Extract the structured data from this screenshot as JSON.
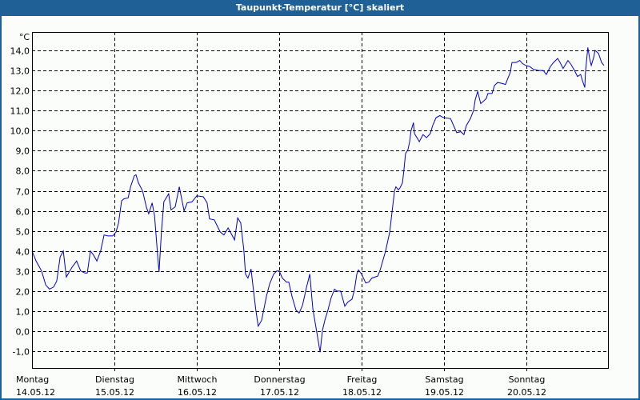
{
  "window": {
    "title": "Taupunkt-Temperatur [°C] skaliert"
  },
  "colors": {
    "titlebar": "#1f6096",
    "background": "#fbfdfb",
    "line": "#0000cc",
    "grid": "#000000"
  },
  "chart_data": {
    "type": "line",
    "title": "Taupunkt-Temperatur [°C] skaliert",
    "ylabel": "°C",
    "xlabel": "",
    "ylim": [
      -1.8,
      15.0
    ],
    "xlim_hours": [
      0,
      168
    ],
    "grid": true,
    "y_ticks": [
      14.0,
      13.0,
      12.0,
      11.0,
      10.0,
      9.0,
      8.0,
      7.0,
      6.0,
      5.0,
      4.0,
      3.0,
      2.0,
      1.0,
      0.0,
      -1.0
    ],
    "y_tick_labels": [
      "14,0",
      "13,0",
      "12,0",
      "11,0",
      "10,0",
      "9,0",
      "8,0",
      "7,0",
      "6,0",
      "5,0",
      "4,0",
      "3,0",
      "2,0",
      "1,0",
      "0,0",
      "-1,0"
    ],
    "x_ticks": [
      {
        "hours": 0,
        "day": "Montag",
        "date": "14.05.12"
      },
      {
        "hours": 24,
        "day": "Dienstag",
        "date": "15.05.12"
      },
      {
        "hours": 48,
        "day": "Mittwoch",
        "date": "16.05.12"
      },
      {
        "hours": 72,
        "day": "Donnerstag",
        "date": "17.05.12"
      },
      {
        "hours": 96,
        "day": "Freitag",
        "date": "18.05.12"
      },
      {
        "hours": 120,
        "day": "Samstag",
        "date": "19.05.12"
      },
      {
        "hours": 144,
        "day": "Sonntag",
        "date": "20.05.12"
      }
    ],
    "series": [
      {
        "name": "Taupunkt",
        "x_hours": [
          0,
          1.2,
          2.8,
          4.0,
          5.1,
          6.3,
          7.2,
          8.2,
          9.1,
          10.0,
          11.7,
          13.0,
          14.2,
          15.4,
          16.1,
          17.0,
          17.9,
          18.9,
          20.0,
          21.0,
          22.1,
          23.5,
          24.5,
          25.2,
          26.1,
          26.8,
          28.0,
          28.7,
          29.8,
          30.3,
          31.0,
          32.2,
          33.3,
          34.0,
          35.0,
          35.7,
          36.6,
          37.0,
          37.7,
          38.4,
          39.8,
          40.5,
          41.7,
          42.9,
          44.3,
          45.2,
          46.6,
          48.0,
          49.9,
          51.0,
          51.7,
          53.1,
          54.8,
          55.9,
          57.1,
          59.0,
          59.9,
          60.8,
          61.7,
          62.2,
          62.9,
          63.8,
          64.5,
          65.2,
          65.9,
          66.9,
          68.3,
          69.2,
          70.4,
          71.3,
          72.0,
          72.9,
          74.1,
          74.8,
          75.7,
          76.9,
          77.8,
          78.8,
          79.9,
          80.9,
          81.8,
          83.0,
          83.9,
          84.6,
          85.3,
          86.2,
          87.1,
          88.1,
          88.8,
          89.9,
          91.1,
          92.0,
          93.2,
          93.9,
          94.6,
          95.1,
          96.0,
          97.2,
          98.1,
          99.0,
          100.7,
          101.4,
          103.0,
          104.2,
          104.9,
          105.6,
          106.0,
          106.7,
          107.2,
          107.9,
          108.3,
          108.8,
          109.5,
          110.0,
          110.4,
          111.1,
          111.4,
          112.3,
          112.8,
          113.9,
          114.9,
          116.0,
          116.7,
          117.7,
          118.8,
          119.8,
          121.9,
          122.8,
          123.7,
          124.9,
          125.8,
          126.5,
          127.7,
          128.6,
          129.1,
          129.8,
          130.7,
          131.4,
          132.3,
          132.8,
          134.0,
          134.7,
          135.6,
          137.0,
          137.9,
          138.6,
          139.3,
          139.8,
          141.0,
          142.1,
          142.8,
          143.8,
          144.9,
          146.1,
          147.5,
          148.9,
          149.8,
          151.0,
          151.9,
          153.1,
          153.8,
          154.7,
          156.1,
          157.0,
          158.0,
          158.9,
          159.8,
          160.3,
          161.0,
          161.2,
          161.9,
          162.4,
          162.9,
          163.6,
          164.0,
          165.0,
          165.9,
          166.6
        ],
        "values": [
          4.0,
          3.5,
          3.0,
          2.3,
          2.1,
          2.2,
          2.5,
          3.7,
          4.0,
          2.7,
          3.2,
          3.5,
          3.0,
          2.9,
          2.9,
          4.0,
          3.8,
          3.5,
          4.0,
          4.8,
          4.75,
          4.75,
          4.95,
          5.4,
          6.5,
          6.6,
          6.65,
          7.2,
          7.75,
          7.8,
          7.4,
          7.0,
          6.2,
          5.85,
          6.4,
          5.75,
          3.75,
          2.95,
          4.95,
          6.45,
          6.85,
          6.05,
          6.2,
          7.2,
          6.0,
          6.4,
          6.45,
          6.75,
          6.7,
          6.4,
          5.6,
          5.55,
          4.95,
          4.8,
          5.15,
          4.55,
          5.65,
          5.4,
          4.05,
          2.85,
          2.65,
          3.1,
          2.05,
          1.05,
          0.25,
          0.55,
          1.75,
          2.35,
          2.85,
          3.0,
          3.0,
          2.65,
          2.45,
          2.45,
          1.75,
          1.05,
          0.9,
          1.3,
          2.15,
          2.85,
          1.1,
          -0.1,
          -1.05,
          0.05,
          0.55,
          1.05,
          1.65,
          2.1,
          2.0,
          2.0,
          1.25,
          1.45,
          1.6,
          2.05,
          2.85,
          3.05,
          2.85,
          2.4,
          2.45,
          2.65,
          2.75,
          3.05,
          4.0,
          4.95,
          6.0,
          7.0,
          7.2,
          7.05,
          7.15,
          7.4,
          8.0,
          8.85,
          9.05,
          9.45,
          10.0,
          10.4,
          9.85,
          9.6,
          9.45,
          9.8,
          9.65,
          9.85,
          10.25,
          10.65,
          10.75,
          10.65,
          10.6,
          10.25,
          9.9,
          9.95,
          9.8,
          10.25,
          10.6,
          11.0,
          11.55,
          11.95,
          11.35,
          11.45,
          11.6,
          11.85,
          11.85,
          12.25,
          12.4,
          12.35,
          12.3,
          12.6,
          12.9,
          13.4,
          13.4,
          13.5,
          13.35,
          13.25,
          13.2,
          13.05,
          13.0,
          13.0,
          12.8,
          13.2,
          13.4,
          13.6,
          13.4,
          13.1,
          13.5,
          13.3,
          13.0,
          12.7,
          12.8,
          12.5,
          12.15,
          12.9,
          14.15,
          13.6,
          13.25,
          13.65,
          14.0,
          13.85,
          13.4,
          13.25
        ]
      }
    ]
  }
}
